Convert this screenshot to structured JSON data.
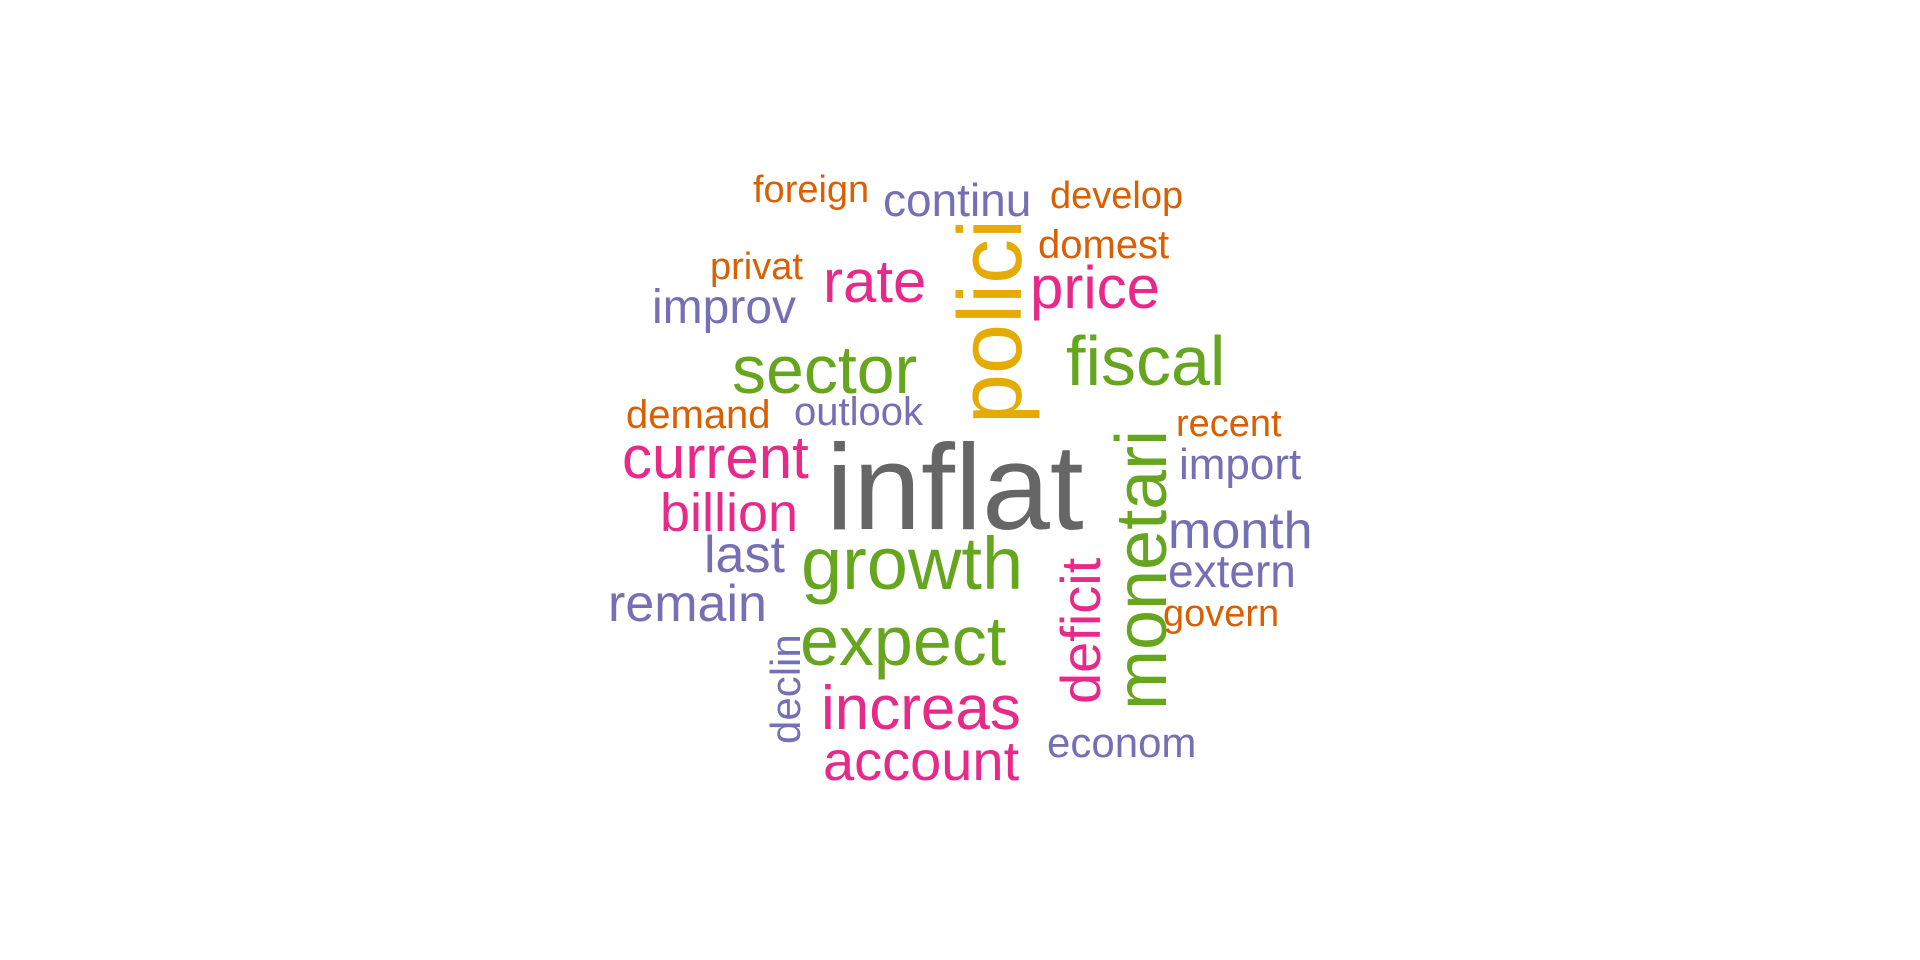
{
  "palette": {
    "gray": "#666666",
    "orange": "#D95F02",
    "purple": "#7570B3",
    "pink": "#E7298A",
    "green": "#66A61E",
    "gold": "#E6AB02"
  },
  "words": [
    {
      "id": "foreign",
      "text": "foreign",
      "color": "orange"
    },
    {
      "id": "continu",
      "text": "continu",
      "color": "purple"
    },
    {
      "id": "develop",
      "text": "develop",
      "color": "orange"
    },
    {
      "id": "domest",
      "text": "domest",
      "color": "orange"
    },
    {
      "id": "privat",
      "text": "privat",
      "color": "orange"
    },
    {
      "id": "rate",
      "text": "rate",
      "color": "pink"
    },
    {
      "id": "price",
      "text": "price",
      "color": "pink"
    },
    {
      "id": "improv",
      "text": "improv",
      "color": "purple"
    },
    {
      "id": "polici",
      "text": "polici",
      "color": "gold"
    },
    {
      "id": "sector",
      "text": "sector",
      "color": "green"
    },
    {
      "id": "fiscal",
      "text": "fiscal",
      "color": "green"
    },
    {
      "id": "demand",
      "text": "demand",
      "color": "orange"
    },
    {
      "id": "outlook",
      "text": "outlook",
      "color": "purple"
    },
    {
      "id": "recent",
      "text": "recent",
      "color": "orange"
    },
    {
      "id": "current",
      "text": "current",
      "color": "pink"
    },
    {
      "id": "inflat",
      "text": "inflat",
      "color": "gray"
    },
    {
      "id": "import",
      "text": "import",
      "color": "purple"
    },
    {
      "id": "billion",
      "text": "billion",
      "color": "pink"
    },
    {
      "id": "monetari",
      "text": "monetari",
      "color": "green"
    },
    {
      "id": "month",
      "text": "month",
      "color": "purple"
    },
    {
      "id": "last",
      "text": "last",
      "color": "purple"
    },
    {
      "id": "growth",
      "text": "growth",
      "color": "green"
    },
    {
      "id": "extern",
      "text": "extern",
      "color": "purple"
    },
    {
      "id": "remain",
      "text": "remain",
      "color": "purple"
    },
    {
      "id": "govern",
      "text": "govern",
      "color": "orange"
    },
    {
      "id": "expect",
      "text": "expect",
      "color": "green"
    },
    {
      "id": "deficit",
      "text": "deficit",
      "color": "pink"
    },
    {
      "id": "declin",
      "text": "declin",
      "color": "purple"
    },
    {
      "id": "increas",
      "text": "increas",
      "color": "pink"
    },
    {
      "id": "account",
      "text": "account",
      "color": "pink"
    },
    {
      "id": "econom",
      "text": "econom",
      "color": "purple"
    }
  ]
}
